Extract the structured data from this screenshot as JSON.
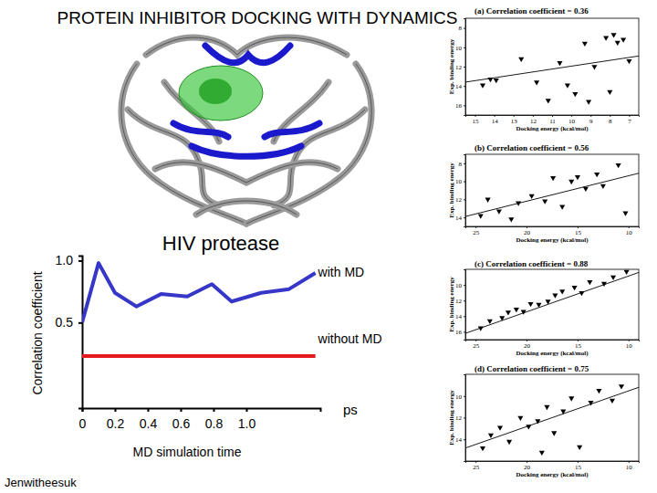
{
  "slide": {
    "title": "PROTEIN INHIBITOR DOCKING WITH DYNAMICS",
    "author": "Jenwitheesuk"
  },
  "chart_data": [
    {
      "type": "line",
      "title": "HIV protease",
      "x_label": "MD simulation time",
      "x_unit": "ps",
      "y_label": "Correlation coefficient",
      "xlim": [
        0,
        1.45
      ],
      "xticks": [
        0,
        0.2,
        0.4,
        0.6,
        0.8,
        {
          "value": 1,
          "label": "1.0"
        }
      ],
      "ylim": [
        -0.19,
        1.04
      ],
      "yticks": [
        {
          "value": 0.5,
          "label": "0.5"
        },
        {
          "value": 1,
          "label": "1.0"
        }
      ],
      "series": [
        {
          "name": "with MD",
          "color": "#3636c8",
          "line_style": "solid",
          "x": [
            0,
            0.1,
            0.2,
            0.33,
            0.48,
            0.64,
            0.79,
            0.91,
            1.09,
            1.26,
            1.42
          ],
          "values": [
            0.5,
            0.98,
            0.74,
            0.63,
            0.73,
            0.71,
            0.81,
            0.67,
            0.74,
            0.77,
            0.9
          ]
        },
        {
          "name": "without MD",
          "color": "#e3191c",
          "line_style": "solid",
          "x": [
            0,
            1.42
          ],
          "values": [
            0.23,
            0.23
          ]
        }
      ]
    },
    {
      "type": "scatter",
      "title": "(a) Correlation coefficient = 0.36",
      "x_label": "Docking energy (kcal/mol)",
      "y_label": "Exp. binding energy",
      "xlim": [
        15.5,
        6.5
      ],
      "xticks": [
        15,
        14,
        13,
        12,
        11,
        10,
        9,
        8,
        7
      ],
      "ylim": [
        17,
        7
      ],
      "yticks": [
        8,
        10,
        12,
        14,
        16
      ],
      "series": [
        {
          "type": "scatter",
          "color": "#000000",
          "marker": "triangle-down",
          "x": [
            14.6,
            14.2,
            13.9,
            12.6,
            11.8,
            11.2,
            10.6,
            10.2,
            9.8,
            9.3,
            8.8,
            8.2,
            7.6,
            7.3,
            7.0,
            8.0,
            9.1,
            7.8
          ],
          "values": [
            13.9,
            13.3,
            13.4,
            11.2,
            13.6,
            15.5,
            11.6,
            13.9,
            14.8,
            9.6,
            12.0,
            9.0,
            9.5,
            9.2,
            11.4,
            14.6,
            15.6,
            8.7
          ]
        },
        {
          "type": "line",
          "color": "#000000",
          "line_style": "solid",
          "x": [
            15.5,
            6.5
          ],
          "values": [
            13.6,
            10.9
          ]
        }
      ]
    },
    {
      "type": "scatter",
      "title": "(b) Correlation coefficient = 0.56",
      "x_label": "Docking energy (kcal/mol)",
      "y_label": "Exp. binding energy",
      "xlim": [
        26,
        9
      ],
      "xticks": [
        25,
        20,
        15,
        10
      ],
      "ylim": [
        15,
        7
      ],
      "yticks": [
        8,
        10,
        12,
        14
      ],
      "series": [
        {
          "type": "scatter",
          "color": "#000000",
          "marker": "triangle-down",
          "x": [
            24.5,
            23.8,
            22.7,
            21.5,
            20.8,
            19.5,
            18.2,
            17.4,
            16.5,
            15.6,
            15.0,
            14.2,
            13.1,
            12.5,
            11.0,
            10.3
          ],
          "values": [
            13.8,
            12.0,
            13.3,
            14.2,
            12.4,
            11.6,
            12.2,
            9.6,
            12.8,
            10.0,
            9.5,
            10.8,
            9.2,
            10.5,
            8.2,
            13.5
          ]
        },
        {
          "type": "line",
          "color": "#000000",
          "line_style": "solid",
          "x": [
            26,
            9
          ],
          "values": [
            13.9,
            9.1
          ]
        }
      ]
    },
    {
      "type": "scatter",
      "title": "(c) Correlation coefficient = 0.88",
      "x_label": "Docking energy (kcal/mol)",
      "y_label": "Exp. binding energy",
      "xlim": [
        26,
        9
      ],
      "xticks": [
        25,
        20,
        15,
        10
      ],
      "ylim": [
        17,
        8
      ],
      "yticks": [
        10,
        12,
        14,
        16
      ],
      "series": [
        {
          "type": "scatter",
          "color": "#000000",
          "marker": "triangle-down",
          "x": [
            24.5,
            23.6,
            22.4,
            21.8,
            21.0,
            20.3,
            19.6,
            18.8,
            17.9,
            17.2,
            16.5,
            15.3,
            14.6,
            13.8,
            12.4,
            11.5,
            10.2
          ],
          "values": [
            15.5,
            14.6,
            14.2,
            13.5,
            13.1,
            13.4,
            12.4,
            12.5,
            12.1,
            11.3,
            10.8,
            10.3,
            11.0,
            9.6,
            9.8,
            9.0,
            8.3
          ]
        },
        {
          "type": "line",
          "color": "#000000",
          "line_style": "solid",
          "x": [
            26,
            9
          ],
          "values": [
            16.2,
            8.4
          ]
        }
      ]
    },
    {
      "type": "scatter",
      "title": "(d) Correlation coefficient = 0.75",
      "x_label": "Docking energy (kcal/mol)",
      "y_label": "Exp. binding energy",
      "xlim": [
        26,
        9
      ],
      "xticks": [
        25,
        20,
        15,
        10
      ],
      "ylim": [
        16,
        8
      ],
      "yticks": [
        10,
        12,
        14
      ],
      "series": [
        {
          "type": "scatter",
          "color": "#000000",
          "marker": "triangle-down",
          "x": [
            24.3,
            23.5,
            22.6,
            21.7,
            20.6,
            19.8,
            18.9,
            18.0,
            17.3,
            16.4,
            15.6,
            14.8,
            13.7,
            12.9,
            11.6,
            10.7,
            18.5
          ],
          "values": [
            14.8,
            13.6,
            12.9,
            14.2,
            12.0,
            12.8,
            12.3,
            11.0,
            13.4,
            11.4,
            10.2,
            14.7,
            10.6,
            9.5,
            10.4,
            9.1,
            15.2
          ]
        },
        {
          "type": "line",
          "color": "#000000",
          "line_style": "solid",
          "x": [
            26,
            9
          ],
          "values": [
            14.8,
            9.2
          ]
        }
      ]
    }
  ]
}
